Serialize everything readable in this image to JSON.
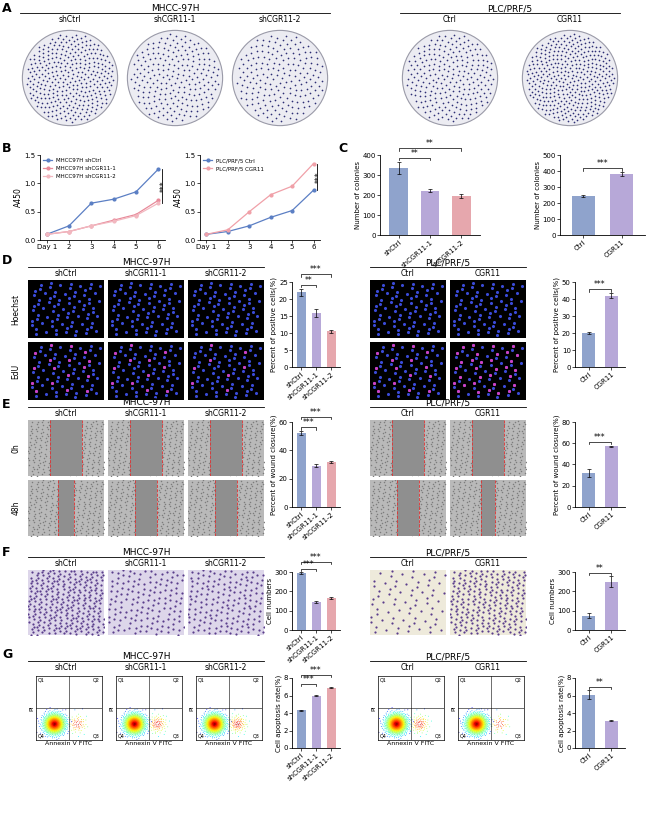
{
  "figure": {
    "panel_labels": [
      "A",
      "B",
      "C",
      "D",
      "E",
      "F",
      "G"
    ],
    "groups": [
      "MHCC-97H",
      "PLC/PRF/5"
    ],
    "columns": {
      "MHCC-97H": [
        "shCtrl",
        "shCGR11-1",
        "shCGR11-2"
      ],
      "PLC/PRF/5": [
        "Ctrl",
        "CGR11"
      ]
    },
    "row_labels": {
      "D": [
        "Hoechst",
        "EdU"
      ],
      "E": [
        "0h",
        "48h"
      ]
    },
    "flow_axes": {
      "x": "Annexin V FITC",
      "y": "PI",
      "quadrants": [
        "Q1",
        "Q2",
        "Q3",
        "Q4"
      ]
    }
  },
  "chart_data": [
    {
      "type": "line",
      "ylabel": "A450",
      "x": [
        1,
        2,
        3,
        4,
        5,
        6
      ],
      "xlim": [
        0.7,
        6.3
      ],
      "xticks": [
        {
          "value": 1,
          "label": "Day 1"
        },
        2,
        3,
        4,
        5,
        6
      ],
      "ylim": [
        0,
        1.5
      ],
      "yticks": [
        {
          "value": 0,
          "label": "0.0"
        },
        {
          "value": 0.5,
          "label": "0.5"
        },
        {
          "value": 1,
          "label": "1.0"
        },
        {
          "value": 1.5,
          "label": "1.5"
        }
      ],
      "legend": "upper left",
      "marker": "o",
      "series": [
        {
          "name": "MHCC97H shCtrl",
          "color": "#5b7fc4",
          "values": [
            0.1,
            0.25,
            0.65,
            0.72,
            0.85,
            1.25
          ]
        },
        {
          "name": "MHCC97H shCGR11-1",
          "color": "#e88a9a",
          "values": [
            0.1,
            0.15,
            0.25,
            0.35,
            0.45,
            0.7
          ]
        },
        {
          "name": "MHCC97H shCGR11-2",
          "color": "#f2b8c0",
          "values": [
            0.1,
            0.15,
            0.25,
            0.33,
            0.43,
            0.65
          ]
        }
      ],
      "significance": [
        {
          "groups": [
            "MHCC97H shCtrl",
            "MHCC97H shCGR11-2"
          ],
          "label": "***",
          "x": 6
        }
      ]
    },
    {
      "type": "line",
      "ylabel": "A450",
      "x": [
        1,
        2,
        3,
        4,
        5,
        6
      ],
      "xlim": [
        0.7,
        6.3
      ],
      "xticks": [
        {
          "value": 1,
          "label": "Day 1"
        },
        2,
        3,
        4,
        5,
        6
      ],
      "ylim": [
        0,
        1.5
      ],
      "yticks": [
        {
          "value": 0,
          "label": "0.0"
        },
        {
          "value": 0.5,
          "label": "0.5"
        },
        {
          "value": 1,
          "label": "1.0"
        },
        {
          "value": 1.5,
          "label": "1.5"
        }
      ],
      "legend": "upper left",
      "marker": "o",
      "series": [
        {
          "name": "PLC/PRF/5 Ctrl",
          "color": "#5b7fc4",
          "values": [
            0.1,
            0.15,
            0.25,
            0.4,
            0.52,
            0.88
          ]
        },
        {
          "name": "PLC/PRF/5 CGR11",
          "color": "#f0a0a8",
          "values": [
            0.1,
            0.18,
            0.5,
            0.8,
            0.95,
            1.35
          ]
        }
      ],
      "significance": [
        {
          "groups": [
            "PLC/PRF/5 CGR11",
            "PLC/PRF/5 Ctrl"
          ],
          "label": "***",
          "x": 6
        }
      ]
    },
    {
      "type": "bar",
      "ylabel": "Number of colonies",
      "categories": [
        "shCtrl",
        "shCGR11-1",
        "shCGR11-2"
      ],
      "values": [
        335,
        222,
        195
      ],
      "errors": [
        30,
        8,
        8
      ],
      "colors": [
        "#8fa3cc",
        "#b7a8d8",
        "#e6a7ad"
      ],
      "ylim": [
        0,
        400
      ],
      "yticks": [
        0,
        100,
        200,
        300,
        400
      ],
      "significance": [
        {
          "groups": [
            "shCtrl",
            "shCGR11-1"
          ],
          "label": "**"
        },
        {
          "groups": [
            "shCtrl",
            "shCGR11-2"
          ],
          "label": "**"
        }
      ]
    },
    {
      "type": "bar",
      "ylabel": "Number of colonies",
      "categories": [
        "Ctrl",
        "CGR11"
      ],
      "values": [
        245,
        380
      ],
      "errors": [
        5,
        12
      ],
      "colors": [
        "#8fa3cc",
        "#b7a8d8"
      ],
      "ylim": [
        0,
        500
      ],
      "yticks": [
        0,
        100,
        200,
        300,
        400,
        500
      ],
      "significance": [
        {
          "groups": [
            "Ctrl",
            "CGR11"
          ],
          "label": "***"
        }
      ]
    },
    {
      "type": "bar",
      "ylabel": "Percent of positive cells(%)",
      "categories": [
        "shCtrl",
        "shCGR11-1",
        "shCGR11-2"
      ],
      "values": [
        22,
        16,
        10.5
      ],
      "errors": [
        1,
        1.2,
        0.4
      ],
      "colors": [
        "#8fa3cc",
        "#b7a8d8",
        "#e6a7ad"
      ],
      "ylim": [
        0,
        25
      ],
      "yticks": [
        0,
        5,
        10,
        15,
        20,
        25
      ],
      "significance": [
        {
          "groups": [
            "shCtrl",
            "shCGR11-1"
          ],
          "label": "**"
        },
        {
          "groups": [
            "shCtrl",
            "shCGR11-2"
          ],
          "label": "***"
        }
      ]
    },
    {
      "type": "bar",
      "ylabel": "Percent of positive cells(%)",
      "categories": [
        "Ctrl",
        "CGR11"
      ],
      "values": [
        20,
        42
      ],
      "errors": [
        0.8,
        1.3
      ],
      "colors": [
        "#8fa3cc",
        "#b7a8d8"
      ],
      "ylim": [
        0,
        50
      ],
      "yticks": [
        0,
        10,
        20,
        30,
        40,
        50
      ],
      "significance": [
        {
          "groups": [
            "Ctrl",
            "CGR11"
          ],
          "label": "***"
        }
      ]
    },
    {
      "type": "bar",
      "ylabel": "Percent of wound closure(%)",
      "categories": [
        "shCtrl",
        "shCGR11-1",
        "shCGR11-2"
      ],
      "values": [
        52,
        29,
        32
      ],
      "errors": [
        1.5,
        1,
        0.8
      ],
      "colors": [
        "#8fa3cc",
        "#b7a8d8",
        "#e6a7ad"
      ],
      "ylim": [
        0,
        60
      ],
      "yticks": [
        0,
        20,
        40,
        60
      ],
      "significance": [
        {
          "groups": [
            "shCtrl",
            "shCGR11-1"
          ],
          "label": "***"
        },
        {
          "groups": [
            "shCtrl",
            "shCGR11-2"
          ],
          "label": "***"
        }
      ]
    },
    {
      "type": "bar",
      "ylabel": "Percent of wound closure(%)",
      "categories": [
        "Ctrl",
        "CGR11"
      ],
      "values": [
        32,
        57
      ],
      "errors": [
        4,
        0.6
      ],
      "colors": [
        "#8fa3cc",
        "#b7a8d8"
      ],
      "ylim": [
        0,
        80
      ],
      "yticks": [
        0,
        20,
        40,
        60,
        80
      ],
      "significance": [
        {
          "groups": [
            "Ctrl",
            "CGR11"
          ],
          "label": "***"
        }
      ]
    },
    {
      "type": "bar",
      "ylabel": "Cell numbers",
      "categories": [
        "shCtrl",
        "shCGR11-1",
        "shCGR11-2"
      ],
      "values": [
        295,
        145,
        165
      ],
      "errors": [
        6,
        3,
        4
      ],
      "colors": [
        "#8fa3cc",
        "#b7a8d8",
        "#e6a7ad"
      ],
      "ylim": [
        0,
        300
      ],
      "yticks": [
        0,
        100,
        200,
        300
      ],
      "significance": [
        {
          "groups": [
            "shCtrl",
            "shCGR11-1"
          ],
          "label": "***"
        },
        {
          "groups": [
            "shCtrl",
            "shCGR11-2"
          ],
          "label": "***"
        }
      ]
    },
    {
      "type": "bar",
      "ylabel": "Cell numbers",
      "categories": [
        "Ctrl",
        "CGR11"
      ],
      "values": [
        75,
        250
      ],
      "errors": [
        15,
        30
      ],
      "colors": [
        "#8fa3cc",
        "#b7a8d8"
      ],
      "ylim": [
        0,
        300
      ],
      "yticks": [
        0,
        100,
        200,
        300
      ],
      "significance": [
        {
          "groups": [
            "Ctrl",
            "CGR11"
          ],
          "label": "**"
        }
      ]
    },
    {
      "type": "bar",
      "ylabel": "Cell apoptosis rate(%)",
      "categories": [
        "shCtrl",
        "shCGR11-1",
        "shCGR11-2"
      ],
      "values": [
        4.3,
        6.0,
        6.9
      ],
      "errors": [
        0.05,
        0.1,
        0.05
      ],
      "colors": [
        "#8fa3cc",
        "#b7a8d8",
        "#e6a7ad"
      ],
      "ylim": [
        0,
        8
      ],
      "yticks": [
        0,
        2,
        4,
        6,
        8
      ],
      "significance": [
        {
          "groups": [
            "shCtrl",
            "shCGR11-1"
          ],
          "label": "***"
        },
        {
          "groups": [
            "shCtrl",
            "shCGR11-2"
          ],
          "label": "***"
        }
      ]
    },
    {
      "type": "bar",
      "ylabel": "Cell apoptosis rate(%)",
      "categories": [
        "Ctrl",
        "CGR11"
      ],
      "values": [
        6.1,
        3.1
      ],
      "errors": [
        0.5,
        0.05
      ],
      "colors": [
        "#8fa3cc",
        "#b7a8d8"
      ],
      "ylim": [
        0,
        8
      ],
      "yticks": [
        0,
        2,
        4,
        6,
        8
      ],
      "significance": [
        {
          "groups": [
            "Ctrl",
            "CGR11"
          ],
          "label": "**"
        }
      ]
    }
  ]
}
